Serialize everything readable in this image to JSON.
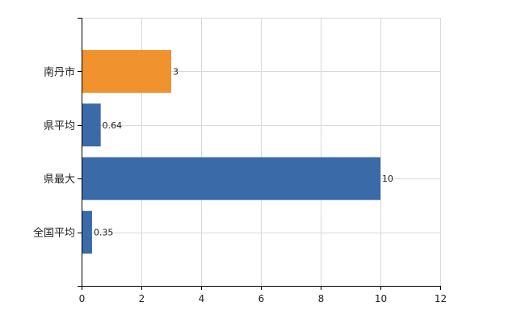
{
  "chart_data": {
    "type": "bar",
    "orientation": "horizontal",
    "title": "",
    "xlabel": "",
    "ylabel": "",
    "categories": [
      "南丹市",
      "県平均",
      "県最大",
      "全国平均"
    ],
    "values": [
      3,
      0.64,
      10,
      0.35
    ],
    "data_labels": [
      "3",
      "0.64",
      "10",
      "0.35"
    ],
    "bar_colors": [
      "#F0932F",
      "#3B6AA8",
      "#3B6AA8",
      "#3B6AA8"
    ],
    "xlim": [
      0,
      12
    ],
    "xticks": [
      0,
      2,
      4,
      6,
      8,
      10,
      12
    ],
    "xtick_labels": [
      "0",
      "2",
      "4",
      "6",
      "8",
      "10",
      "12"
    ],
    "grid": true,
    "legend": "none"
  }
}
